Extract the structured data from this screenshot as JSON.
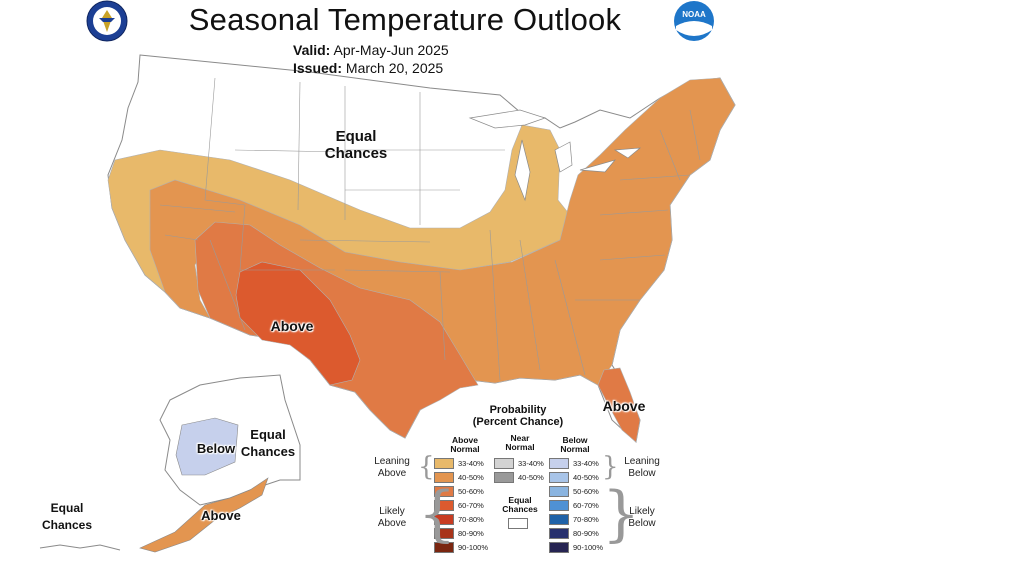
{
  "header": {
    "title": "Seasonal Temperature Outlook",
    "valid_label": "Valid:",
    "valid_value": "Apr-May-Jun 2025",
    "issued_label": "Issued:",
    "issued_value": "March 20, 2025"
  },
  "logos": {
    "commerce_seal_icon": "dept-commerce-seal-icon",
    "noaa_logo_icon": "noaa-logo-icon",
    "noaa_text": "NOAA"
  },
  "map_labels": {
    "equal_chances_conus": "Equal\nChances",
    "above_southwest": "Above",
    "above_florida": "Above",
    "below_alaska": "Below",
    "equal_chances_alaska": "Equal\nChances",
    "equal_chances_aleutians": "Equal\nChances",
    "above_alaska_south": "Above"
  },
  "legend": {
    "title": "Probability\n(Percent Chance)",
    "above_head": "Above\nNormal",
    "near_head": "Near\nNormal",
    "below_head": "Below\nNormal",
    "leaning_above": "Leaning\nAbove",
    "likely_above": "Likely\nAbove",
    "leaning_below": "Leaning\nBelow",
    "likely_below": "Likely\nBelow",
    "equal_chances": "Equal\nChances",
    "above_bins": [
      {
        "label": "33-40%",
        "color": "#e8b96a"
      },
      {
        "label": "40-50%",
        "color": "#e39550"
      },
      {
        "label": "50-60%",
        "color": "#e07a45"
      },
      {
        "label": "60-70%",
        "color": "#dc5a2e"
      },
      {
        "label": "70-80%",
        "color": "#c83c22"
      },
      {
        "label": "80-90%",
        "color": "#a8341a"
      },
      {
        "label": "90-100%",
        "color": "#7a2610"
      }
    ],
    "near_bins": [
      {
        "label": "33-40%",
        "color": "#d3d3d3"
      },
      {
        "label": "40-50%",
        "color": "#999999"
      }
    ],
    "below_bins": [
      {
        "label": "33-40%",
        "color": "#c6d0ec"
      },
      {
        "label": "40-50%",
        "color": "#a8c4e8"
      },
      {
        "label": "50-60%",
        "color": "#8ab4e0"
      },
      {
        "label": "60-70%",
        "color": "#4f91d4"
      },
      {
        "label": "70-80%",
        "color": "#1f62a8"
      },
      {
        "label": "80-90%",
        "color": "#27306e"
      },
      {
        "label": "90-100%",
        "color": "#262452"
      }
    ]
  },
  "colors": {
    "lean_above": "#e8b96a",
    "above_40_50": "#e39550",
    "above_50_60": "#e07a45",
    "above_60_70": "#dc5a2e",
    "below_33_40": "#c6d0ec",
    "border": "#8a8a8a"
  }
}
